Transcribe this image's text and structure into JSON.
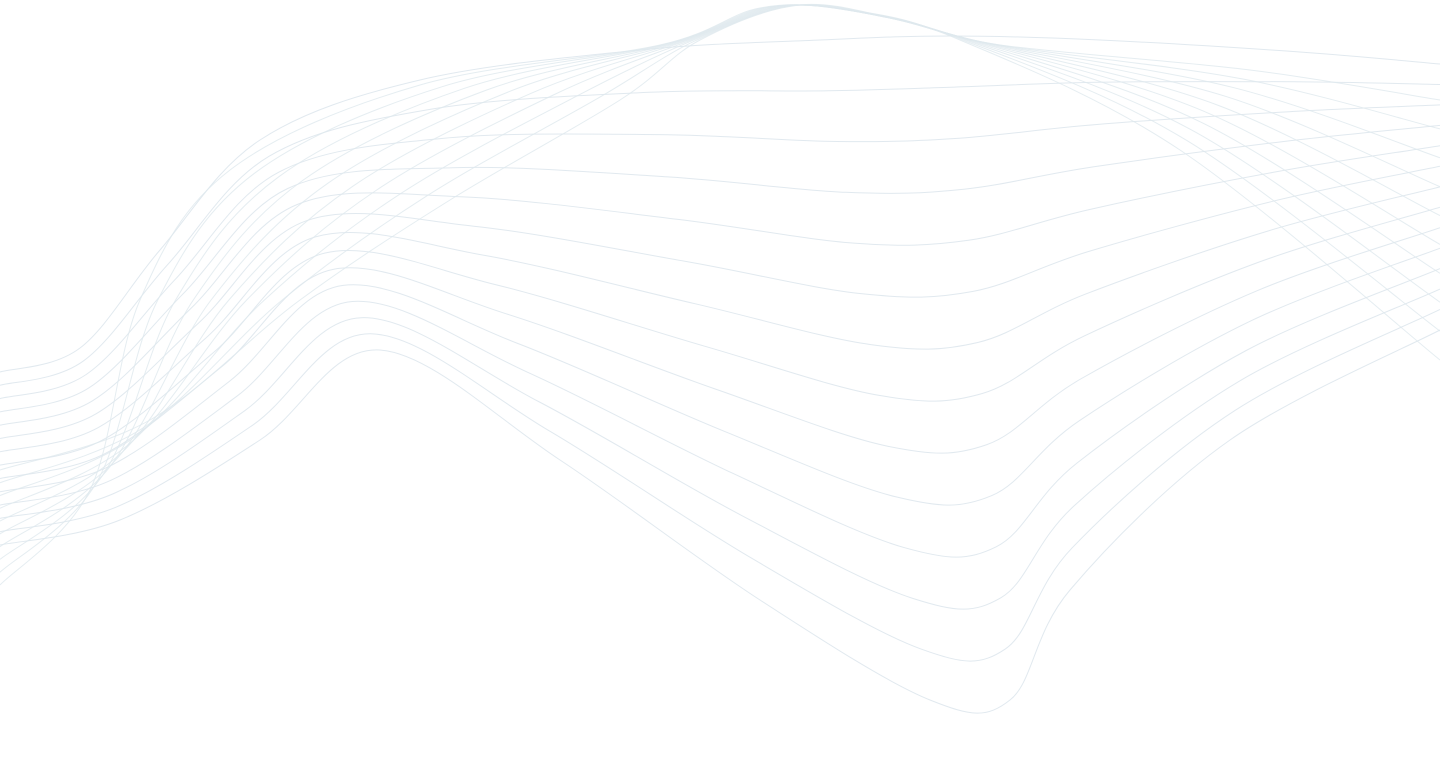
{
  "background": {
    "color": "#ffffff",
    "pattern_icon": "wave-mesh-lines",
    "line_color": "#dfe8ee"
  }
}
